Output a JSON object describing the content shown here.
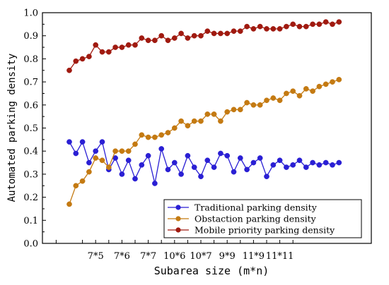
{
  "chart_data": {
    "type": "line",
    "xlabel": "Subarea size (m*n)",
    "ylabel": "Automated parking density",
    "ylim": [
      0.0,
      1.0
    ],
    "yticks": [
      "0.0",
      "0.1",
      "0.2",
      "0.3",
      "0.4",
      "0.5",
      "0.6",
      "0.7",
      "0.8",
      "0.9",
      "1.0"
    ],
    "xticks": [
      "7*5",
      "7*6",
      "7*7",
      "10*6",
      "10*7",
      "9*9",
      "11*9",
      "11*11"
    ],
    "xtick_positions": [
      4,
      8,
      12,
      16,
      20,
      24,
      28,
      32
    ],
    "grid": false,
    "legend_position": "bottom-right",
    "series": [
      {
        "name": "Traditional parking density",
        "color": "#2a1fd4",
        "values": [
          0.44,
          0.39,
          0.44,
          0.35,
          0.4,
          0.44,
          0.32,
          0.37,
          0.3,
          0.36,
          0.28,
          0.34,
          0.38,
          0.26,
          0.41,
          0.32,
          0.35,
          0.3,
          0.38,
          0.33,
          0.29,
          0.36,
          0.33,
          0.39,
          0.38,
          0.31,
          0.37,
          0.32,
          0.35,
          0.37,
          0.29,
          0.34,
          0.36,
          0.33,
          0.34,
          0.36,
          0.33,
          0.35,
          0.34,
          0.35,
          0.34,
          0.35
        ]
      },
      {
        "name": "Obstaction parking density",
        "color": "#c47a12",
        "values": [
          0.17,
          0.25,
          0.27,
          0.31,
          0.37,
          0.36,
          0.33,
          0.4,
          0.4,
          0.4,
          0.43,
          0.47,
          0.46,
          0.46,
          0.47,
          0.48,
          0.5,
          0.53,
          0.51,
          0.53,
          0.53,
          0.56,
          0.56,
          0.53,
          0.57,
          0.58,
          0.58,
          0.61,
          0.6,
          0.6,
          0.62,
          0.63,
          0.62,
          0.65,
          0.66,
          0.64,
          0.67,
          0.66,
          0.68,
          0.69,
          0.7,
          0.71
        ]
      },
      {
        "name": "Mobile priority parking density",
        "color": "#a01a10",
        "values": [
          0.75,
          0.79,
          0.8,
          0.81,
          0.86,
          0.83,
          0.83,
          0.85,
          0.85,
          0.86,
          0.86,
          0.89,
          0.88,
          0.88,
          0.9,
          0.88,
          0.89,
          0.91,
          0.89,
          0.9,
          0.9,
          0.92,
          0.91,
          0.91,
          0.91,
          0.92,
          0.92,
          0.94,
          0.93,
          0.94,
          0.93,
          0.93,
          0.93,
          0.94,
          0.95,
          0.94,
          0.94,
          0.95,
          0.95,
          0.96,
          0.95,
          0.96
        ]
      }
    ]
  }
}
